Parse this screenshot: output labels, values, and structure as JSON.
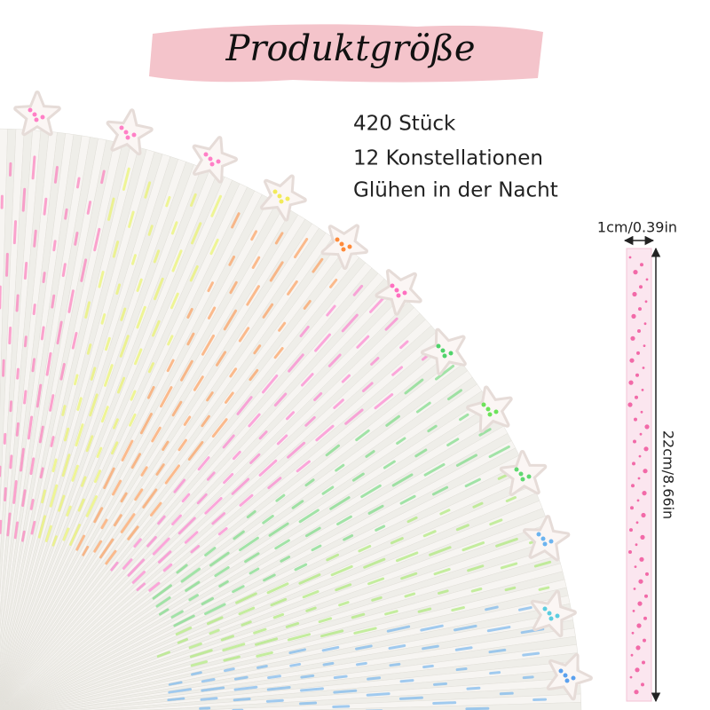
{
  "header": {
    "title": "Produktgröße"
  },
  "features": [
    "420 Stück",
    "12 Konstellationen",
    "Glühen in der Nacht"
  ],
  "dimensions": {
    "width": "1cm/0.39in",
    "length": "22cm/8.66in"
  }
}
